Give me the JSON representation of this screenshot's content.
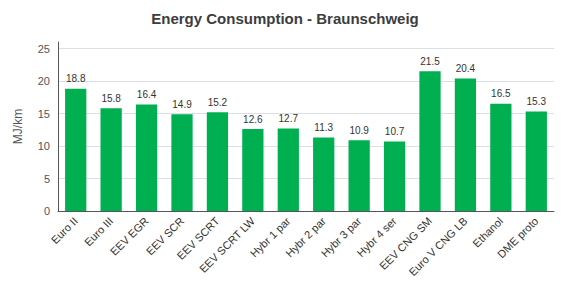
{
  "chart_data": {
    "type": "bar",
    "title": "Energy Consumption - Braunschweig",
    "ylabel": "MJ/km",
    "categories": [
      "Euro II",
      "Euro III",
      "EEV EGR",
      "EEV SCR",
      "EEV SCRT",
      "EEV SCRT LW",
      "Hybr 1 par",
      "Hybr 2 par",
      "Hybr 3 par",
      "Hybr 4 ser",
      "EEV CNG SM",
      "Euro V CNG LB",
      "Ethanol",
      "DME proto"
    ],
    "values": [
      18.8,
      15.8,
      16.4,
      14.9,
      15.2,
      12.6,
      12.7,
      11.3,
      10.9,
      10.7,
      21.5,
      20.4,
      16.5,
      15.3
    ],
    "color": "#00b050",
    "ylim": [
      0,
      26
    ],
    "yticks": [
      0,
      5,
      10,
      15,
      20,
      25
    ],
    "grid": true,
    "data_labels": true
  }
}
